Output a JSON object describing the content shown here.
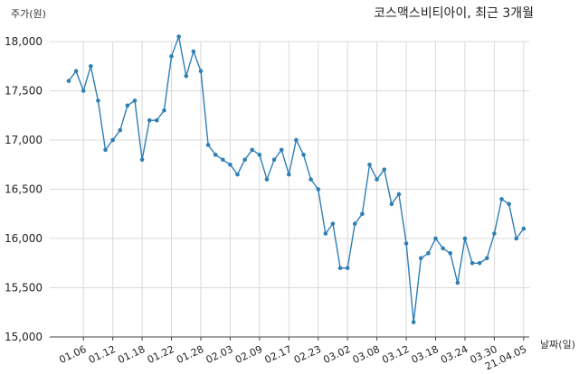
{
  "chart_data": {
    "type": "line",
    "title": "코스맥스비티아이, 최근 3개월",
    "ylabel": "주가(원)",
    "xlabel": "날짜(일)",
    "ylim": [
      15000,
      18000
    ],
    "yticks": [
      "15,000",
      "15,500",
      "16,000",
      "16,500",
      "17,000",
      "17,500",
      "18,000"
    ],
    "ytick_values": [
      15000,
      15500,
      16000,
      16500,
      17000,
      17500,
      18000
    ],
    "xtick_labels": [
      "01.06",
      "01.12",
      "01.18",
      "01.22",
      "01.28",
      "02.03",
      "02.09",
      "02.17",
      "02.23",
      "03.02",
      "03.08",
      "03.12",
      "03.18",
      "03.24",
      "03.30",
      "21.04.05"
    ],
    "xtick_index": [
      2,
      6,
      10,
      14,
      18,
      22,
      26,
      30,
      34,
      38,
      42,
      46,
      50,
      54,
      58,
      62
    ],
    "grid": true,
    "line_color": "#2f7fb5",
    "series": [
      {
        "values": [
          17600,
          17700,
          17500,
          17750,
          17400,
          16900,
          17000,
          17100,
          17350,
          17400,
          16800,
          17200,
          17200,
          17300,
          17850,
          18050,
          17650,
          17900,
          17700,
          16950,
          16850,
          16800,
          16750,
          16650,
          16800,
          16900,
          16850,
          16600,
          16800,
          16900,
          16650,
          17000,
          16850,
          16600,
          16500,
          16050,
          16150,
          15700,
          15700,
          16150,
          16250,
          16750,
          16600,
          16700,
          16350,
          16450,
          15950,
          15150,
          15800,
          15850,
          16000,
          15900,
          15850,
          15550,
          16000,
          15750,
          15750,
          15800,
          16050,
          16400,
          16350,
          16000,
          16100
        ]
      }
    ]
  }
}
